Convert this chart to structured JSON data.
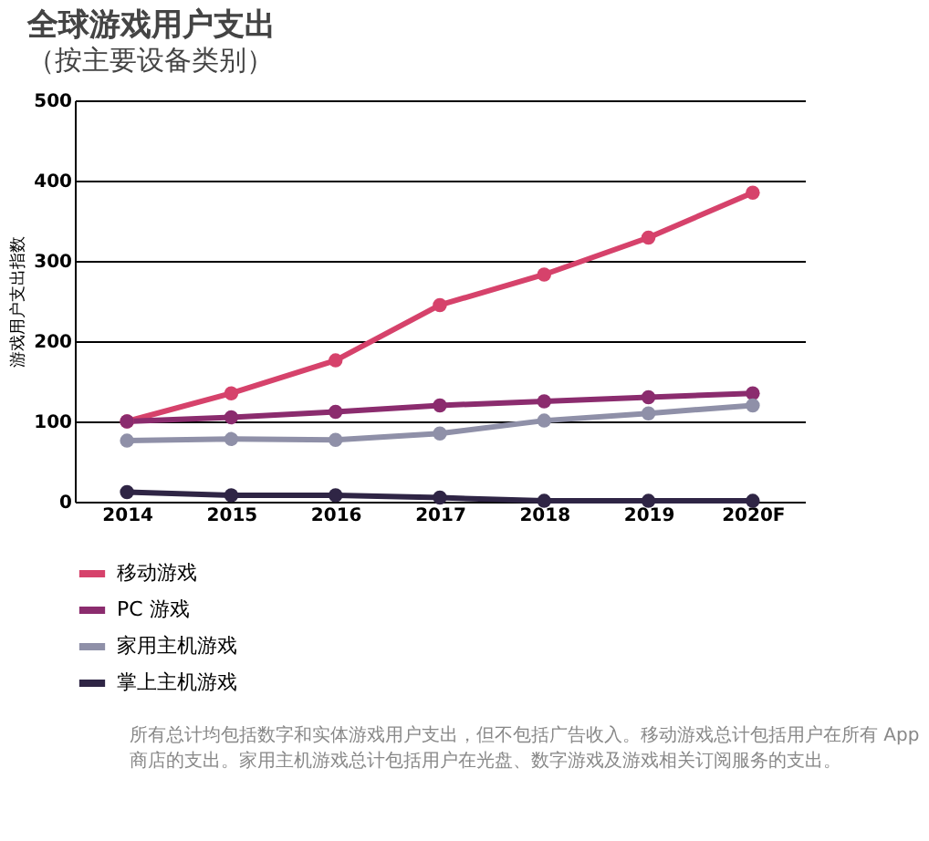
{
  "chart_data": {
    "type": "line",
    "title": "全球游戏用户支出",
    "subtitle": "（按主要设备类别）",
    "ylabel": "游戏用户支出指数",
    "categories": [
      "2014",
      "2015",
      "2016",
      "2017",
      "2018",
      "2019",
      "2020F"
    ],
    "series": [
      {
        "name": "移动游戏",
        "color": "#d6426b",
        "values": [
          100,
          135,
          176,
          245,
          283,
          329,
          385
        ]
      },
      {
        "name": "PC 游戏",
        "color": "#8b2c6e",
        "values": [
          100,
          105,
          112,
          120,
          125,
          130,
          135
        ]
      },
      {
        "name": "家用主机游戏",
        "color": "#8f90a8",
        "values": [
          76,
          78,
          77,
          85,
          101,
          110,
          120
        ]
      },
      {
        "name": "掌上主机游戏",
        "color": "#2f2545",
        "values": [
          12,
          8,
          8,
          5,
          1,
          1,
          1
        ]
      }
    ],
    "ylim": [
      0,
      500
    ],
    "yticks": [
      0,
      100,
      200,
      300,
      400,
      500
    ],
    "grid": "y",
    "marker": "circle",
    "legend": "bottom left",
    "annotations": [
      "所有总计均包括数字和实体游戏用户支出，但不包括广告收入。移动游戏总计包括用户在所有 App 商店的支出。家用主机游戏总计包括用户在光盘、数字游戏及游戏相关订阅服务的支出。"
    ]
  }
}
